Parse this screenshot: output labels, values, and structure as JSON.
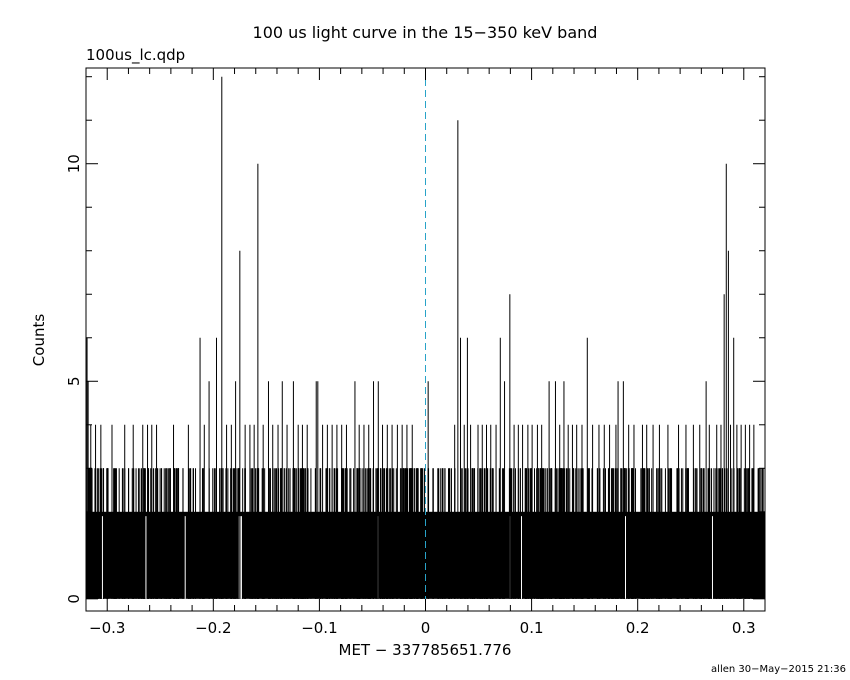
{
  "chart_data": {
    "type": "bar",
    "title": "100 us light curve in the 15−350 keV band",
    "file_label": "100us_lc.qdp",
    "xlabel": "MET − 337785651.776",
    "ylabel": "Counts",
    "footer": "allen 30−May−2015 21:36",
    "xlim": [
      -0.32,
      0.32
    ],
    "ylim": [
      -0.28,
      12.2
    ],
    "x_ticks": [
      {
        "value": -0.3,
        "label": "−0.3"
      },
      {
        "value": -0.2,
        "label": "−0.2"
      },
      {
        "value": -0.1,
        "label": "−0.1"
      },
      {
        "value": 0,
        "label": "0"
      },
      {
        "value": 0.1,
        "label": "0.1"
      },
      {
        "value": 0.2,
        "label": "0.2"
      },
      {
        "value": 0.3,
        "label": "0.3"
      }
    ],
    "y_ticks": [
      {
        "value": 0,
        "label": "0"
      },
      {
        "value": 5,
        "label": "5"
      },
      {
        "value": 10,
        "label": "10"
      }
    ],
    "bin_width": 0.0001,
    "baseline_level": 2,
    "reference_line": {
      "x": 0,
      "style": "dashed",
      "color": "#29a3c8"
    },
    "peaks": [
      {
        "x": -0.319,
        "y": 6
      },
      {
        "x": -0.318,
        "y": 5
      },
      {
        "x": -0.3155,
        "y": 4
      },
      {
        "x": -0.311,
        "y": 4
      },
      {
        "x": -0.306,
        "y": 4
      },
      {
        "x": -0.2955,
        "y": 4
      },
      {
        "x": -0.2835,
        "y": 4
      },
      {
        "x": -0.2755,
        "y": 4
      },
      {
        "x": -0.2665,
        "y": 4
      },
      {
        "x": -0.262,
        "y": 4
      },
      {
        "x": -0.258,
        "y": 4
      },
      {
        "x": -0.2535,
        "y": 4
      },
      {
        "x": -0.2375,
        "y": 4
      },
      {
        "x": -0.2235,
        "y": 4
      },
      {
        "x": -0.2125,
        "y": 6
      },
      {
        "x": -0.2085,
        "y": 4
      },
      {
        "x": -0.204,
        "y": 5
      },
      {
        "x": -0.197,
        "y": 6
      },
      {
        "x": -0.192,
        "y": 12
      },
      {
        "x": -0.1875,
        "y": 4
      },
      {
        "x": -0.183,
        "y": 4
      },
      {
        "x": -0.179,
        "y": 5
      },
      {
        "x": -0.175,
        "y": 8
      },
      {
        "x": -0.17,
        "y": 4
      },
      {
        "x": -0.1655,
        "y": 4
      },
      {
        "x": -0.1615,
        "y": 4
      },
      {
        "x": -0.158,
        "y": 10
      },
      {
        "x": -0.153,
        "y": 4
      },
      {
        "x": -0.148,
        "y": 5
      },
      {
        "x": -0.144,
        "y": 4
      },
      {
        "x": -0.139,
        "y": 4
      },
      {
        "x": -0.135,
        "y": 5
      },
      {
        "x": -0.1305,
        "y": 4
      },
      {
        "x": -0.1245,
        "y": 5
      },
      {
        "x": -0.12,
        "y": 4
      },
      {
        "x": -0.116,
        "y": 4
      },
      {
        "x": -0.1115,
        "y": 4
      },
      {
        "x": -0.103,
        "y": 5
      },
      {
        "x": -0.1015,
        "y": 5
      },
      {
        "x": -0.097,
        "y": 4
      },
      {
        "x": -0.0925,
        "y": 4
      },
      {
        "x": -0.088,
        "y": 4
      },
      {
        "x": -0.0835,
        "y": 4
      },
      {
        "x": -0.079,
        "y": 4
      },
      {
        "x": -0.0745,
        "y": 4
      },
      {
        "x": -0.0665,
        "y": 5
      },
      {
        "x": -0.0625,
        "y": 4
      },
      {
        "x": -0.058,
        "y": 4
      },
      {
        "x": -0.0535,
        "y": 4
      },
      {
        "x": -0.049,
        "y": 5
      },
      {
        "x": -0.0445,
        "y": 5
      },
      {
        "x": -0.0405,
        "y": 4
      },
      {
        "x": -0.036,
        "y": 4
      },
      {
        "x": -0.0315,
        "y": 4
      },
      {
        "x": -0.0265,
        "y": 4
      },
      {
        "x": -0.022,
        "y": 4
      },
      {
        "x": -0.0175,
        "y": 4
      },
      {
        "x": -0.0125,
        "y": 4
      },
      {
        "x": -0.008,
        "y": 3
      },
      {
        "x": 0.0025,
        "y": 5
      },
      {
        "x": 0.0275,
        "y": 4
      },
      {
        "x": 0.0305,
        "y": 11
      },
      {
        "x": 0.033,
        "y": 6
      },
      {
        "x": 0.0365,
        "y": 4
      },
      {
        "x": 0.0395,
        "y": 6
      },
      {
        "x": 0.0425,
        "y": 4
      },
      {
        "x": 0.0495,
        "y": 4
      },
      {
        "x": 0.0535,
        "y": 4
      },
      {
        "x": 0.0575,
        "y": 4
      },
      {
        "x": 0.0615,
        "y": 4
      },
      {
        "x": 0.0665,
        "y": 4
      },
      {
        "x": 0.0705,
        "y": 6
      },
      {
        "x": 0.0745,
        "y": 5
      },
      {
        "x": 0.0795,
        "y": 7
      },
      {
        "x": 0.0835,
        "y": 4
      },
      {
        "x": 0.0875,
        "y": 4
      },
      {
        "x": 0.0915,
        "y": 4
      },
      {
        "x": 0.0965,
        "y": 4
      },
      {
        "x": 0.1005,
        "y": 4
      },
      {
        "x": 0.1055,
        "y": 4
      },
      {
        "x": 0.1095,
        "y": 4
      },
      {
        "x": 0.1165,
        "y": 5
      },
      {
        "x": 0.1225,
        "y": 5
      },
      {
        "x": 0.1265,
        "y": 4
      },
      {
        "x": 0.1305,
        "y": 5
      },
      {
        "x": 0.1345,
        "y": 4
      },
      {
        "x": 0.1385,
        "y": 4
      },
      {
        "x": 0.1425,
        "y": 4
      },
      {
        "x": 0.1475,
        "y": 4
      },
      {
        "x": 0.1525,
        "y": 6
      },
      {
        "x": 0.1575,
        "y": 4
      },
      {
        "x": 0.1635,
        "y": 4
      },
      {
        "x": 0.1685,
        "y": 4
      },
      {
        "x": 0.1735,
        "y": 4
      },
      {
        "x": 0.1795,
        "y": 4
      },
      {
        "x": 0.1815,
        "y": 5
      },
      {
        "x": 0.1865,
        "y": 5
      },
      {
        "x": 0.1915,
        "y": 4
      },
      {
        "x": 0.1965,
        "y": 4
      },
      {
        "x": 0.2045,
        "y": 4
      },
      {
        "x": 0.2085,
        "y": 4
      },
      {
        "x": 0.2145,
        "y": 4
      },
      {
        "x": 0.2205,
        "y": 4
      },
      {
        "x": 0.2285,
        "y": 4
      },
      {
        "x": 0.2385,
        "y": 4
      },
      {
        "x": 0.2455,
        "y": 4
      },
      {
        "x": 0.2525,
        "y": 4
      },
      {
        "x": 0.2585,
        "y": 4
      },
      {
        "x": 0.2645,
        "y": 5
      },
      {
        "x": 0.2675,
        "y": 4
      },
      {
        "x": 0.2745,
        "y": 4
      },
      {
        "x": 0.2785,
        "y": 4
      },
      {
        "x": 0.2815,
        "y": 7
      },
      {
        "x": 0.2835,
        "y": 10
      },
      {
        "x": 0.2855,
        "y": 8
      },
      {
        "x": 0.2875,
        "y": 4
      },
      {
        "x": 0.2905,
        "y": 6
      },
      {
        "x": 0.2935,
        "y": 4
      },
      {
        "x": 0.2975,
        "y": 4
      },
      {
        "x": 0.3015,
        "y": 4
      },
      {
        "x": 0.3055,
        "y": 4
      },
      {
        "x": 0.3095,
        "y": 4
      },
      {
        "x": 0.3135,
        "y": 3
      },
      {
        "x": 0.3175,
        "y": 3
      }
    ],
    "zero_bins": [
      -0.3045,
      -0.2635,
      -0.2265,
      -0.1755,
      -0.1745,
      -0.1735,
      -0.0445,
      0.0795,
      0.0905,
      0.1885,
      0.2705
    ],
    "grid": false,
    "legend": "none"
  }
}
